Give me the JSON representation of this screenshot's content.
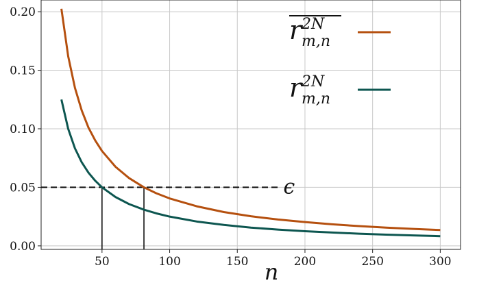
{
  "chart_data": {
    "type": "line",
    "xlabel": "n",
    "ylabel": "",
    "xlim": [
      5,
      315
    ],
    "ylim": [
      -0.003,
      0.21
    ],
    "x_ticks": [
      50,
      100,
      150,
      200,
      250,
      300
    ],
    "y_ticks": [
      0.0,
      0.05,
      0.1,
      0.15,
      0.2
    ],
    "x_tick_labels": [
      "50",
      "100",
      "150",
      "200",
      "250",
      "300"
    ],
    "y_tick_labels": [
      "0.00",
      "0.05",
      "0.10",
      "0.15",
      "0.20"
    ],
    "grid": true,
    "legend_position": "top-right",
    "series": [
      {
        "name": "r̄^{2N}_{m,n}",
        "color": "#b5500f",
        "x": [
          20,
          25,
          30,
          35,
          40,
          45,
          50,
          60,
          70,
          81,
          90,
          100,
          120,
          140,
          160,
          180,
          200,
          220,
          240,
          260,
          280,
          300
        ],
        "y": [
          0.2025,
          0.162,
          0.135,
          0.1157,
          0.101,
          0.09,
          0.081,
          0.0675,
          0.0579,
          0.05,
          0.045,
          0.0405,
          0.0338,
          0.0289,
          0.0253,
          0.0225,
          0.0203,
          0.0184,
          0.0169,
          0.0156,
          0.0145,
          0.0135
        ]
      },
      {
        "name": "r^{2N}_{m,n}",
        "color": "#0d5650",
        "x": [
          20,
          25,
          30,
          35,
          40,
          45,
          50,
          60,
          70,
          81,
          90,
          100,
          120,
          140,
          160,
          180,
          200,
          220,
          240,
          260,
          280,
          300
        ],
        "y": [
          0.125,
          0.1,
          0.0833,
          0.0714,
          0.0625,
          0.0556,
          0.05,
          0.0417,
          0.0357,
          0.0309,
          0.0278,
          0.025,
          0.0208,
          0.0179,
          0.0156,
          0.0139,
          0.0125,
          0.0114,
          0.0104,
          0.0096,
          0.0089,
          0.0083
        ]
      }
    ],
    "annotations": {
      "epsilon_label": "ϵ",
      "epsilon_value": 0.05,
      "epsilon_x_end": 180,
      "vertical_markers": [
        50,
        81
      ]
    }
  }
}
